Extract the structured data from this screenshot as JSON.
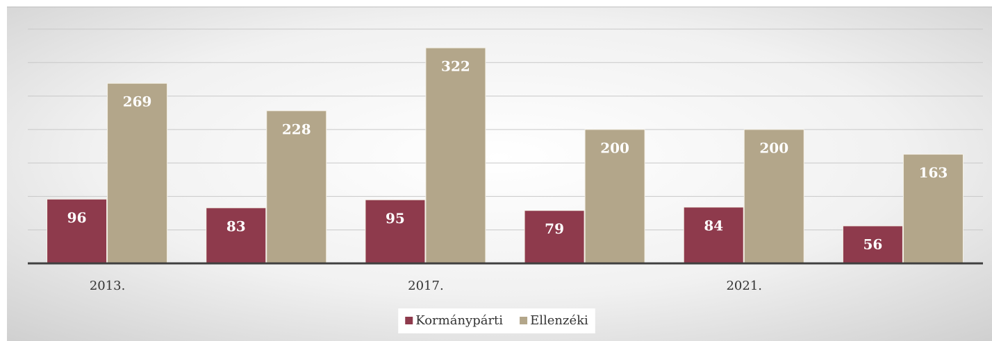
{
  "chart_data": {
    "type": "bar",
    "categories": [
      "2013.",
      null,
      "2017.",
      null,
      "2021.",
      null
    ],
    "series": [
      {
        "name": "Kormánypárti",
        "color": "#8e3a4c",
        "values": [
          96,
          83,
          95,
          79,
          84,
          56
        ]
      },
      {
        "name": "Ellenzéki",
        "color": "#b3a68a",
        "values": [
          269,
          228,
          322,
          200,
          200,
          163
        ]
      }
    ],
    "ylim": [
      0,
      350
    ],
    "yticks": [
      0,
      50,
      100,
      150,
      200,
      250,
      300,
      350
    ],
    "grid": true,
    "legend": "bottom"
  }
}
